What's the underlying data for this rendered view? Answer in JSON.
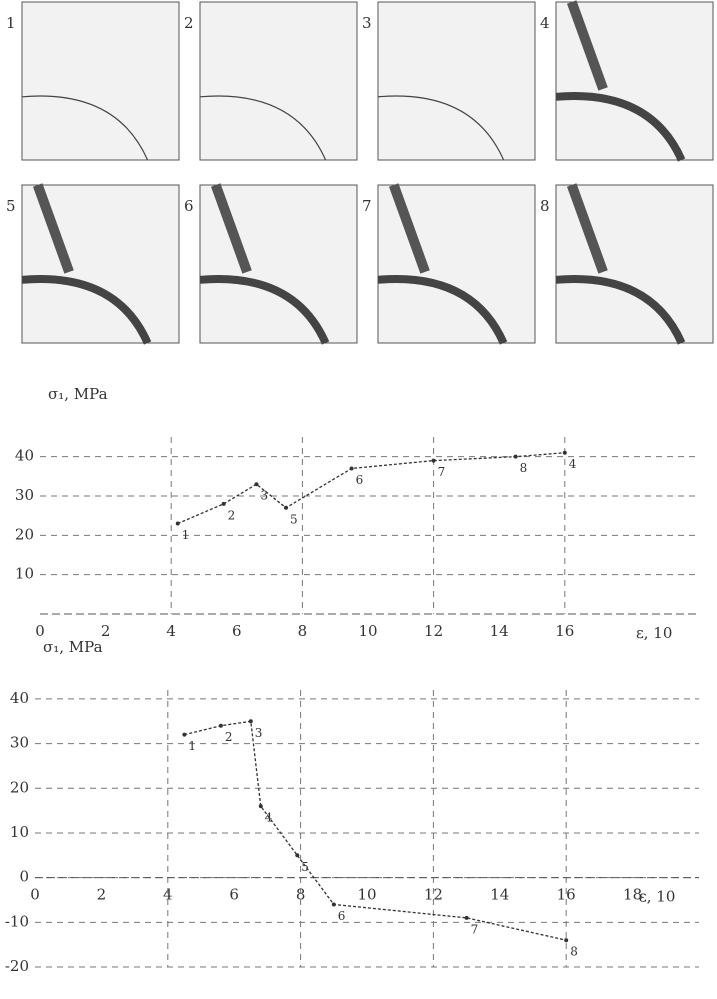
{
  "panels": [
    "1",
    "2",
    "3",
    "4",
    "5",
    "6",
    "7",
    "8"
  ],
  "chart_data": [
    {
      "type": "line",
      "y_label": "σ₁, MPa",
      "x_label": "ε, 10",
      "color": "#333333",
      "grid": true,
      "x": [
        4.2,
        5.6,
        6.6,
        7.5,
        9.5,
        12,
        14.5,
        16
      ],
      "values": [
        23,
        28,
        33,
        27,
        37,
        39,
        40,
        41
      ],
      "point_labels": [
        "1",
        "2",
        "3",
        "5",
        "6",
        "7",
        "8",
        "4"
      ],
      "xlim": [
        0,
        20
      ],
      "ylim": [
        0,
        45
      ],
      "xticks": [
        0,
        2,
        4,
        6,
        8,
        10,
        12,
        14,
        16
      ],
      "yticks": [
        10,
        20,
        30,
        40
      ]
    },
    {
      "type": "line",
      "y_label": "σ₁, MPa",
      "x_label": "ε, 10",
      "color": "#333333",
      "grid": true,
      "x": [
        4.5,
        5.6,
        6.5,
        6.8,
        7.9,
        9,
        13,
        16
      ],
      "values": [
        32,
        34,
        35,
        16,
        5,
        -6,
        -9,
        -14
      ],
      "point_labels": [
        "1",
        "2",
        "3",
        "4",
        "5",
        "6",
        "7",
        "8"
      ],
      "xlim": [
        0,
        20
      ],
      "ylim": [
        -20,
        42
      ],
      "xticks": [
        0,
        2,
        4,
        6,
        8,
        10,
        12,
        14,
        16,
        18
      ],
      "yticks": [
        -20,
        -10,
        0,
        10,
        20,
        30,
        40
      ]
    }
  ]
}
